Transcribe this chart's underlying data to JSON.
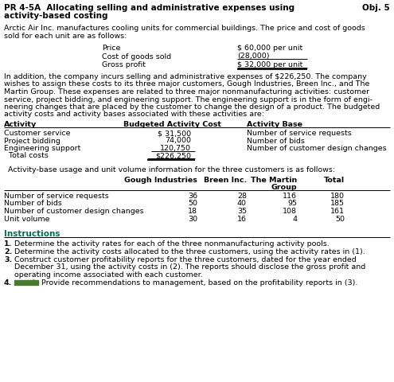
{
  "bg_color": "#ffffff",
  "title_left1": "PR 4-5A  Allocating selling and administrative expenses using",
  "title_left2": "activity-based costing",
  "title_right": "Obj. 5",
  "para1": "Arctic Air Inc. manufactures cooling units for commercial buildings. The price and cost of goods\nsold for each unit are as follows:",
  "price_rows": [
    [
      "Price",
      "$ 60,000 per unit"
    ],
    [
      "Cost of goods sold",
      "(28,000)"
    ],
    [
      "Gross profit",
      "$ 32,000 per unit"
    ]
  ],
  "para2_lines": [
    "In addition, the company incurs selling and administrative expenses of $226,250. The company",
    "wishes to assign these costs to its three major customers, Gough Industries, Breen Inc., and The",
    "Martin Group. These expenses are related to three major nonmanufacturing activities: customer",
    "service, project bidding, and engineering support. The engineering support is in the form of engi-",
    "neering changes that are placed by the customer to change the design of a product. The budgeted",
    "activity costs and activity bases associated with these activities are:"
  ],
  "act_headers": [
    "Activity",
    "Budgeted Activity Cost",
    "Activity Base"
  ],
  "act_rows": [
    [
      "Customer service",
      "$ 31,500",
      "Number of service requests"
    ],
    [
      "Project bidding",
      "74,000",
      "Number of bids"
    ],
    [
      "Engineering support",
      "120,750",
      "Number of customer design changes"
    ],
    [
      "  Total costs",
      "$226,250",
      ""
    ]
  ],
  "para3": "Activity-base usage and unit volume information for the three customers is as follows:",
  "usage_col_headers1": [
    "",
    "Gough Industries",
    "Breen Inc.",
    "The Martin",
    "Total"
  ],
  "usage_col_headers2": [
    "",
    "",
    "",
    "Group",
    ""
  ],
  "usage_rows": [
    [
      "Number of service requests",
      "36",
      "28",
      "116",
      "180"
    ],
    [
      "Number of bids",
      "50",
      "40",
      "95",
      "185"
    ],
    [
      "Number of customer design changes",
      "18",
      "35",
      "108",
      "161"
    ],
    [
      "Unit volume",
      "30",
      "16",
      "4",
      "50"
    ]
  ],
  "instr_title": "Instructions",
  "instr_color": "#007050",
  "instructions": [
    "Determine the activity rates for each of the three nonmanufacturing activity pools.",
    "Determine the activity costs allocated to the three customers, using the activity rates in (1).",
    [
      "Construct customer profitability reports for the three customers, dated for the year ended",
      "December 31, using the activity costs in (2). The reports should disclose the gross profit and",
      "operating income associated with each customer."
    ],
    "Provide recommendations to management, based on the profitability reports in (3)."
  ]
}
